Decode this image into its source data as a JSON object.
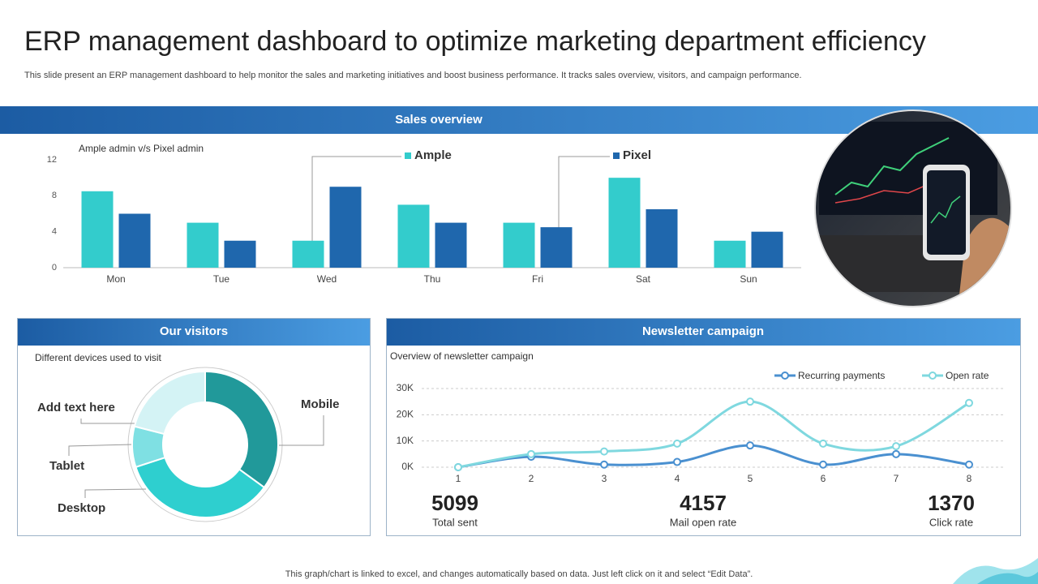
{
  "header": {
    "title": "ERP management dashboard to optimize marketing department efficiency",
    "subtitle": "This slide present an ERP management dashboard to help monitor the sales and marketing initiatives and boost business performance. It tracks sales overview, visitors, and campaign performance."
  },
  "sections": {
    "sales": "Sales overview",
    "visitors": "Our visitors",
    "newsletter": "Newsletter campaign"
  },
  "chart_data": [
    {
      "type": "bar",
      "title": "Ample admin v/s Pixel admin",
      "categories": [
        "Mon",
        "Tue",
        "Wed",
        "Thu",
        "Fri",
        "Sat",
        "Sun"
      ],
      "series": [
        {
          "name": "Ample",
          "color": "#33cccc",
          "values": [
            8.5,
            5,
            3,
            7,
            5,
            10,
            3
          ]
        },
        {
          "name": "Pixel",
          "color": "#1f67ad",
          "values": [
            6,
            3,
            9,
            5,
            4.5,
            6.5,
            4
          ]
        }
      ],
      "ylim": [
        0,
        12
      ],
      "yticks": [
        0,
        4,
        8,
        12
      ],
      "grid": false
    },
    {
      "type": "donut",
      "title": "Different  devices used to visit",
      "categories": [
        "Mobile",
        "Desktop",
        "Tablet",
        "Add text here"
      ],
      "values": [
        35,
        35,
        9,
        21
      ],
      "colors": [
        "#21999a",
        "#2ecfcf",
        "#7fe0e3",
        "#d4f3f5"
      ]
    },
    {
      "type": "line",
      "title": "Overview  of newsletter campaign",
      "x": [
        1,
        2,
        3,
        4,
        5,
        6,
        7,
        8
      ],
      "series": [
        {
          "name": "Recurring payments",
          "color": "#4a90d0",
          "values": [
            0,
            4000,
            1000,
            2000,
            8300,
            1000,
            5000,
            1000
          ]
        },
        {
          "name": "Open rate",
          "color": "#7fd8df",
          "values": [
            0,
            5000,
            6000,
            9000,
            25000,
            9000,
            8000,
            24500
          ]
        }
      ],
      "xlim": [
        0.5,
        8.5
      ],
      "xticks": [
        1,
        2,
        3,
        4,
        5,
        6,
        7,
        8
      ],
      "ylim": [
        0,
        30000
      ],
      "yticks": [
        {
          "value": 0,
          "label": "0K"
        },
        {
          "value": 10000,
          "label": "10K"
        },
        {
          "value": 20000,
          "label": "20K"
        },
        {
          "value": 30000,
          "label": "30K"
        }
      ],
      "grid": true
    }
  ],
  "kpis": [
    {
      "value": 5099,
      "label": "Total sent"
    },
    {
      "value": 4157,
      "label": "Mail open rate"
    },
    {
      "value": 1370,
      "label": "Click rate"
    }
  ],
  "footer": "This graph/chart is linked to excel, and changes automatically based on data. Just left click on it and select “Edit Data”."
}
